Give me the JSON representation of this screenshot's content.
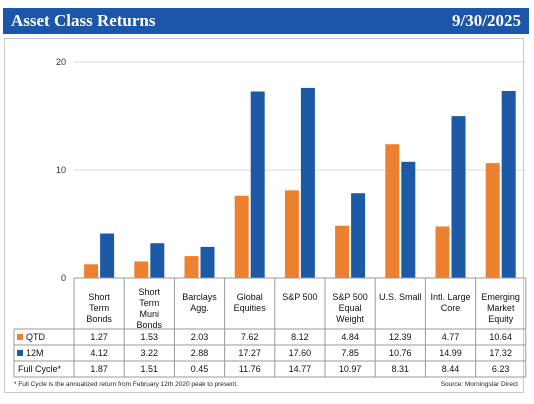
{
  "header": {
    "title": "Asset Class Returns",
    "date": "9/30/2025"
  },
  "colors": {
    "header_bg": "#1c56a8",
    "qtd": "#ee8130",
    "m12": "#1c5aa6",
    "grid": "#d9d9d9"
  },
  "chart_data": {
    "type": "bar",
    "categories": [
      [
        "Short",
        "Term",
        "Bonds"
      ],
      [
        "Short",
        "Term",
        "Muni",
        "Bonds"
      ],
      [
        "Barclays",
        "Agg."
      ],
      [
        "Global",
        "Equities"
      ],
      [
        "S&P 500"
      ],
      [
        "S&P 500",
        "Equal",
        "Weight"
      ],
      [
        "U.S. Small"
      ],
      [
        "Intl. Large",
        "Core"
      ],
      [
        "Emerging",
        "Market",
        "Equity"
      ]
    ],
    "series": [
      {
        "name": "QTD",
        "values": [
          1.27,
          1.53,
          2.03,
          7.62,
          8.12,
          4.84,
          12.39,
          4.77,
          10.64
        ],
        "plotted": true
      },
      {
        "name": "12M",
        "values": [
          4.12,
          3.22,
          2.88,
          17.27,
          17.6,
          7.85,
          10.76,
          14.99,
          17.32
        ],
        "plotted": true
      },
      {
        "name": "Full Cycle*",
        "values": [
          1.87,
          1.51,
          0.45,
          11.76,
          14.77,
          10.97,
          8.31,
          8.44,
          6.23
        ],
        "plotted": false
      }
    ],
    "table_values": [
      [
        "1.27",
        "1.53",
        "2.03",
        "7.62",
        "8.12",
        "4.84",
        "12.39",
        "4.77",
        "10.64"
      ],
      [
        "4.12",
        "3.22",
        "2.88",
        "17.27",
        "17.60",
        "7.85",
        "10.76",
        "14.99",
        "17.32"
      ],
      [
        "1.87",
        "1.51",
        "0.45",
        "11.76",
        "14.77",
        "10.97",
        "8.31",
        "8.44",
        "6.23"
      ]
    ],
    "ylim": [
      0,
      20
    ],
    "yticks": [
      "0",
      "10",
      "20"
    ],
    "grid": true,
    "legend": "data-table"
  },
  "footnote": "* Full Cycle is the annualized return from February 12th 2020 peak to present.",
  "source": "Source: Morningstar Direct"
}
